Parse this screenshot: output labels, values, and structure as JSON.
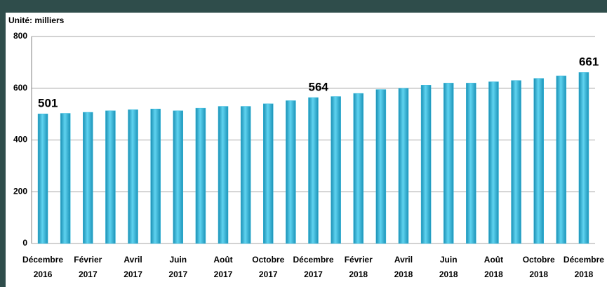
{
  "chart_data": {
    "type": "bar",
    "title": "Unité: milliers",
    "categories": [
      "Décembre 2016",
      null,
      "Février 2017",
      null,
      "Avril 2017",
      null,
      "Juin 2017",
      null,
      "Août 2017",
      null,
      "Octobre 2017",
      null,
      "Décembre 2017",
      null,
      "Février 2018",
      null,
      "Avril 2018",
      null,
      "Juin 2018",
      null,
      "Août 2018",
      null,
      "Octobre 2018",
      null,
      "Décembre 2018"
    ],
    "values": [
      501,
      503,
      507,
      513,
      517,
      520,
      513,
      523,
      530,
      530,
      540,
      552,
      564,
      568,
      580,
      595,
      600,
      612,
      620,
      620,
      625,
      630,
      638,
      648,
      661
    ],
    "value_labels": [
      "501",
      null,
      null,
      null,
      null,
      null,
      null,
      null,
      null,
      null,
      null,
      null,
      "564",
      null,
      null,
      null,
      null,
      null,
      null,
      null,
      null,
      null,
      null,
      null,
      "661"
    ],
    "color": "#33b8dc",
    "ylim": [
      0,
      800
    ],
    "yticks": [
      0,
      200,
      400,
      600,
      800
    ],
    "grid": true
  }
}
